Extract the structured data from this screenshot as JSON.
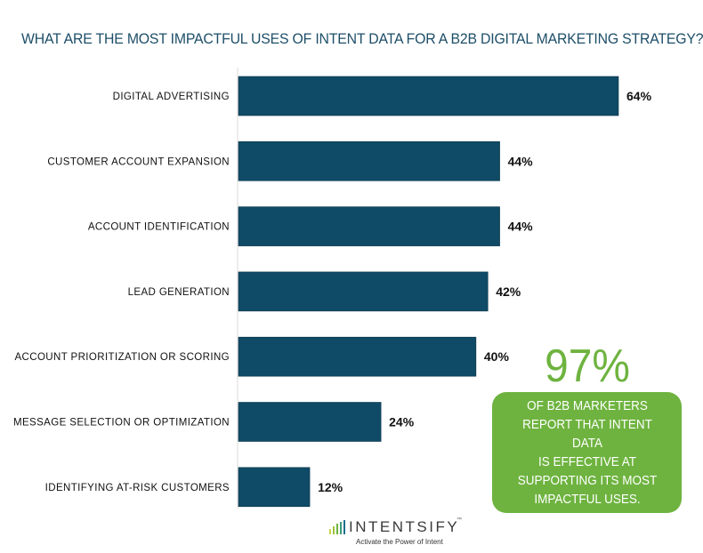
{
  "chart_data": {
    "type": "bar",
    "orientation": "horizontal",
    "title": "WHAT ARE THE MOST IMPACTFUL USES OF INTENT DATA FOR A B2B DIGITAL MARKETING STRATEGY?",
    "categories": [
      "DIGITAL ADVERTISING",
      "CUSTOMER ACCOUNT EXPANSION",
      "ACCOUNT IDENTIFICATION",
      "LEAD GENERATION",
      "ACCOUNT PRIORITIZATION OR SCORING",
      "MESSAGE SELECTION OR OPTIMIZATION",
      "IDENTIFYING AT-RISK CUSTOMERS"
    ],
    "values": [
      64,
      44,
      44,
      42,
      40,
      24,
      12
    ],
    "value_labels": [
      "64%",
      "44%",
      "44%",
      "42%",
      "40%",
      "24%",
      "12%"
    ],
    "xlim": [
      0,
      64
    ],
    "bar_color": "#0f4a66",
    "grid": false
  },
  "callout": {
    "stat": "97%",
    "text_lines": [
      "OF B2B MARKETERS",
      "REPORT THAT INTENT DATA",
      "IS EFFECTIVE AT",
      "SUPPORTING ITS MOST",
      "IMPACTFUL USES."
    ],
    "color": "#6eb33f"
  },
  "logo": {
    "name": "INTENTSIFY",
    "trademark": "™",
    "tagline": "Activate the Power of Intent"
  }
}
